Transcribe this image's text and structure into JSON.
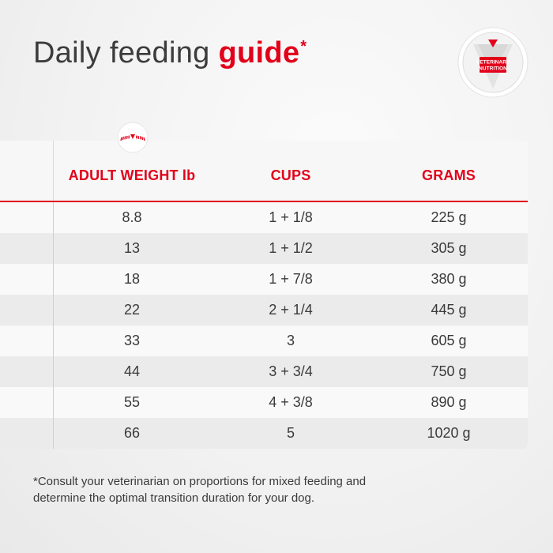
{
  "title": {
    "main": "Daily feeding ",
    "accent": "guide",
    "asterisk": "*"
  },
  "badge": {
    "line1": "VETERINARY",
    "line2": "NUTRITION",
    "icon": "veterinary-nutrition-badge"
  },
  "table": {
    "headers": {
      "weight": "ADULT WEIGHT lb",
      "cups": "CUPS",
      "grams": "GRAMS"
    },
    "rows": [
      {
        "weight": "8.8",
        "cups": "1 + 1/8",
        "grams": "225 g"
      },
      {
        "weight": "13",
        "cups": "1 + 1/2",
        "grams": "305 g"
      },
      {
        "weight": "18",
        "cups": "1 + 7/8",
        "grams": "380 g"
      },
      {
        "weight": "22",
        "cups": "2 + 1/4",
        "grams": "445 g"
      },
      {
        "weight": "33",
        "cups": "3",
        "grams": "605 g"
      },
      {
        "weight": "44",
        "cups": "3 + 3/4",
        "grams": "750 g"
      },
      {
        "weight": "55",
        "cups": "4 + 3/8",
        "grams": "890 g"
      },
      {
        "weight": "66",
        "cups": "5",
        "grams": "1020 g"
      }
    ]
  },
  "footnote": {
    "line1": "*Consult your veterinarian on proportions for mixed feeding and",
    "line2": "determine the optimal transition duration for your dog."
  },
  "colors": {
    "accent": "#e2001a",
    "text": "#3a3a3a"
  }
}
